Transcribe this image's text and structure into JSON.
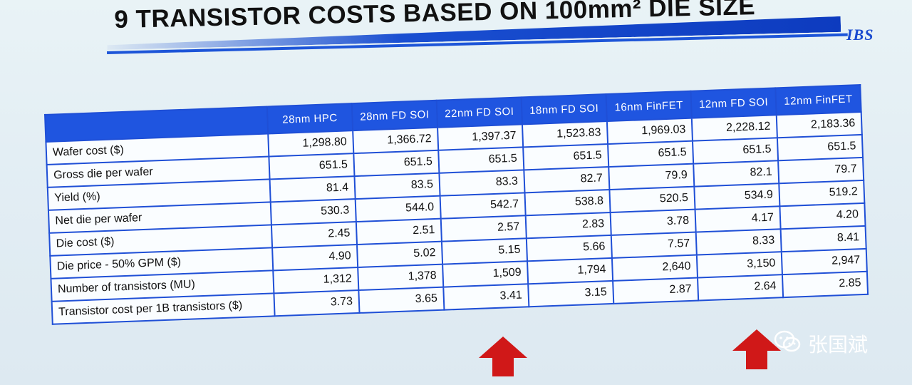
{
  "title": "9 TRANSISTOR COSTS BASED ON 100mm² DIE SIZE",
  "logo": "IBS",
  "columns": [
    "28nm HPC",
    "28nm FD SOI",
    "22nm FD SOI",
    "18nm FD SOI",
    "16nm FinFET",
    "12nm FD SOI",
    "12nm FinFET"
  ],
  "rows": [
    {
      "label": "Wafer cost ($)",
      "values": [
        "1,298.80",
        "1,366.72",
        "1,397.37",
        "1,523.83",
        "1,969.03",
        "2,228.12",
        "2,183.36"
      ]
    },
    {
      "label": "Gross die per wafer",
      "values": [
        "651.5",
        "651.5",
        "651.5",
        "651.5",
        "651.5",
        "651.5",
        "651.5"
      ]
    },
    {
      "label": "Yield (%)",
      "values": [
        "81.4",
        "83.5",
        "83.3",
        "82.7",
        "79.9",
        "82.1",
        "79.7"
      ]
    },
    {
      "label": "Net die per wafer",
      "values": [
        "530.3",
        "544.0",
        "542.7",
        "538.8",
        "520.5",
        "534.9",
        "519.2"
      ]
    },
    {
      "label": "Die cost ($)",
      "values": [
        "2.45",
        "2.51",
        "2.57",
        "2.83",
        "3.78",
        "4.17",
        "4.20"
      ]
    },
    {
      "label": "Die price - 50% GPM ($)",
      "values": [
        "4.90",
        "5.02",
        "5.15",
        "5.66",
        "7.57",
        "8.33",
        "8.41"
      ]
    },
    {
      "label": "Number of transistors (MU)",
      "values": [
        "1,312",
        "1,378",
        "1,509",
        "1,794",
        "2,640",
        "3,150",
        "2,947"
      ]
    },
    {
      "label": "Transistor cost per 1B transistors ($)",
      "values": [
        "3.73",
        "3.65",
        "3.41",
        "3.15",
        "2.87",
        "2.64",
        "2.85"
      ]
    }
  ],
  "watermark": {
    "icon": "wechat-icon",
    "text": "张国斌"
  },
  "colors": {
    "header_blue": "#1f55e0",
    "arrow_red": "#d01818"
  }
}
